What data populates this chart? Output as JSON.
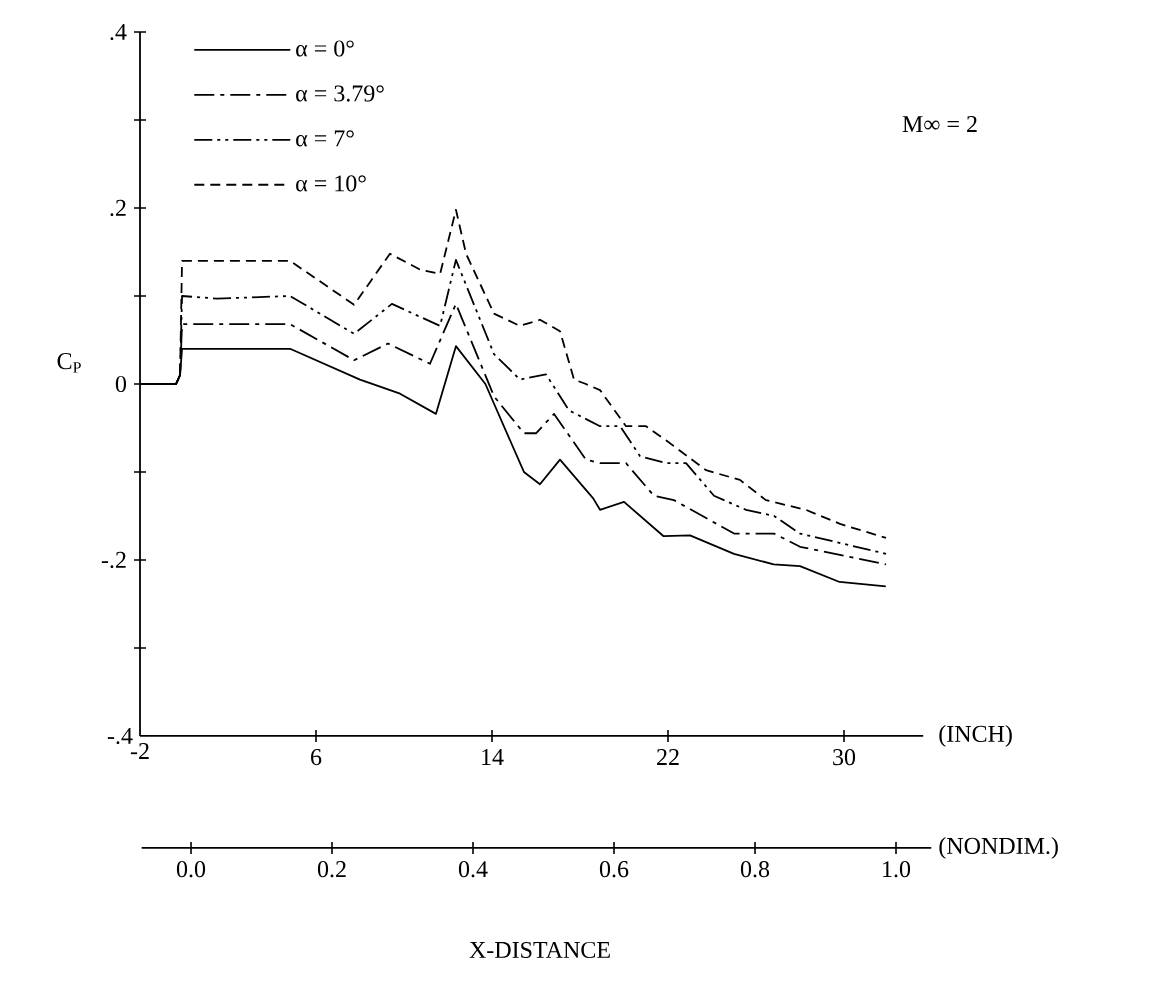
{
  "chart_data": {
    "type": "line",
    "ylabel": "C$_{P}$",
    "xlabel": "(INCH)",
    "x2label": "(NONDIM.)",
    "annotations": [
      "M∞ = 2",
      "X-DISTANCE"
    ],
    "xlim": [
      -2,
      33.6
    ],
    "xticks": [
      -2,
      6,
      14,
      22,
      30
    ],
    "x2lim": [
      -0.07,
      1.05
    ],
    "x2ticks": [
      {
        "value": 0.0,
        "label": "0.0"
      },
      {
        "value": 0.2,
        "label": "0.2"
      },
      {
        "value": 0.4,
        "label": "0.4"
      },
      {
        "value": 0.6,
        "label": "0.6"
      },
      {
        "value": 0.8,
        "label": "0.8"
      },
      {
        "value": 1.0,
        "label": "1.0"
      }
    ],
    "ylim": [
      -0.4,
      0.4
    ],
    "yticks": [
      {
        "value": -0.4,
        "label": "-.4"
      },
      {
        "value": -0.3,
        "label": null
      },
      {
        "value": -0.2,
        "label": "-.2"
      },
      {
        "value": -0.1,
        "label": null
      },
      {
        "value": 0,
        "label": "0"
      },
      {
        "value": 0.1,
        "label": null
      },
      {
        "value": 0.2,
        "label": ".2"
      },
      {
        "value": 0.3,
        "label": null
      },
      {
        "value": 0.4,
        "label": ".4"
      }
    ],
    "legend": "top left",
    "series": [
      {
        "name": "α = 0°",
        "color": "#000000",
        "line_style": "solid",
        "x": [
          -2,
          -0.36,
          -0.18,
          -0.09,
          4.82,
          8.0,
          9.82,
          11.45,
          12.36,
          13.7,
          15.45,
          16.18,
          17.09,
          18.6,
          18.91,
          20.0,
          21.8,
          23.0,
          25.0,
          26.8,
          28.0,
          29.8,
          31.9
        ],
        "values": [
          0,
          0,
          0.01,
          0.04,
          0.04,
          0.005,
          -0.011,
          -0.034,
          0.043,
          0.0,
          -0.1,
          -0.114,
          -0.086,
          -0.13,
          -0.143,
          -0.134,
          -0.173,
          -0.172,
          -0.193,
          -0.205,
          -0.207,
          -0.225,
          -0.23
        ]
      },
      {
        "name": "α = 3.79°",
        "color": "#000000",
        "line_style": "dashdot",
        "x": [
          -2,
          -0.36,
          -0.18,
          -0.09,
          4.82,
          7.73,
          9.27,
          11.18,
          12.36,
          14.09,
          15.45,
          16.0,
          16.82,
          18.27,
          18.91,
          20.09,
          21.36,
          22.27,
          25.0,
          26.82,
          28.0,
          31.91
        ],
        "values": [
          0,
          0,
          0.01,
          0.068,
          0.068,
          0.027,
          0.046,
          0.023,
          0.091,
          -0.014,
          -0.056,
          -0.056,
          -0.034,
          -0.086,
          -0.09,
          -0.09,
          -0.127,
          -0.132,
          -0.17,
          -0.17,
          -0.185,
          -0.205
        ]
      },
      {
        "name": "α = 7°",
        "color": "#000000",
        "line_style": "dashdotdot",
        "x": [
          -2,
          -0.36,
          -0.18,
          -0.09,
          1.5,
          4.82,
          7.73,
          9.45,
          11.64,
          12.36,
          14.09,
          15.27,
          16.45,
          17.5,
          18.91,
          19.82,
          20.73,
          21.91,
          22.82,
          24.09,
          25.55,
          26.82,
          28.0,
          31.91
        ],
        "values": [
          0,
          0,
          0.01,
          0.1,
          0.097,
          0.1,
          0.057,
          0.091,
          0.066,
          0.141,
          0.034,
          0.005,
          0.011,
          -0.03,
          -0.048,
          -0.048,
          -0.082,
          -0.09,
          -0.09,
          -0.127,
          -0.143,
          -0.15,
          -0.17,
          -0.193
        ]
      },
      {
        "name": "α = 10°",
        "color": "#000000",
        "line_style": "dashed",
        "x": [
          -2,
          -0.36,
          -0.18,
          -0.09,
          4.82,
          7.73,
          9.36,
          10.73,
          11.64,
          12.36,
          12.82,
          14.09,
          15.27,
          16.18,
          17.09,
          17.73,
          18.27,
          18.91,
          20.09,
          21.0,
          21.91,
          23.73,
          25.27,
          26.45,
          28.27,
          29.82,
          31.91
        ],
        "values": [
          0,
          0,
          0.01,
          0.14,
          0.14,
          0.09,
          0.148,
          0.13,
          0.125,
          0.198,
          0.148,
          0.08,
          0.066,
          0.073,
          0.06,
          0.005,
          0.0,
          -0.007,
          -0.048,
          -0.048,
          -0.064,
          -0.098,
          -0.109,
          -0.132,
          -0.143,
          -0.159,
          -0.175
        ]
      }
    ]
  }
}
